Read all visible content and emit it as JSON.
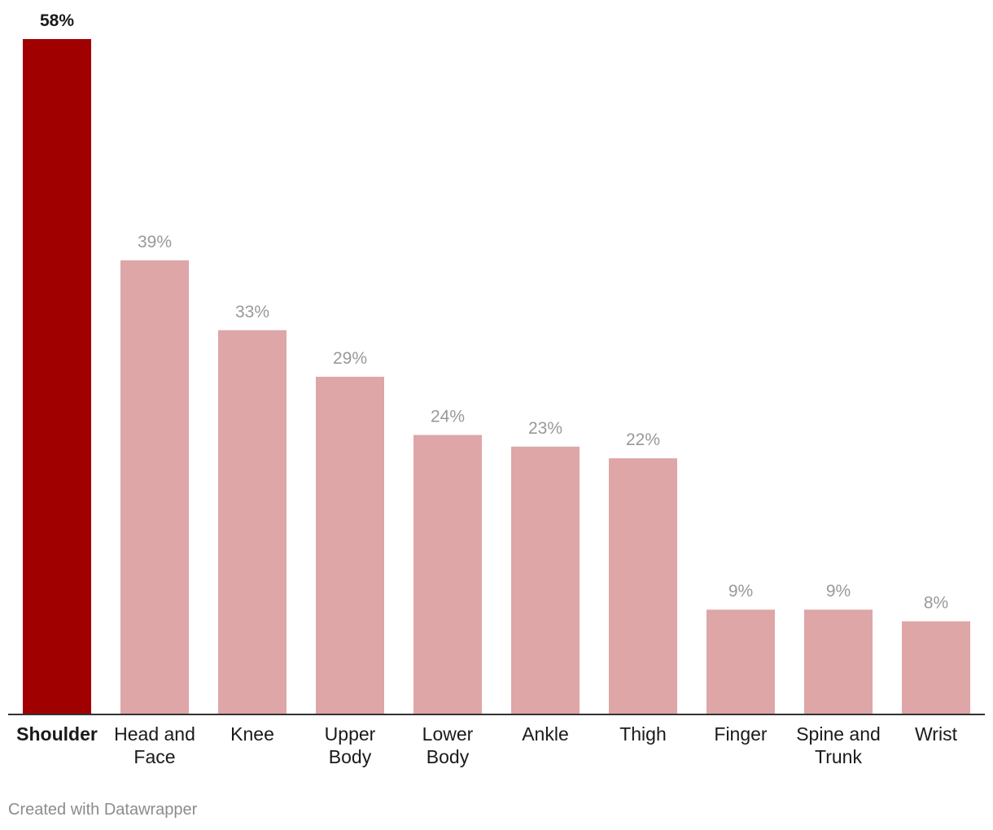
{
  "chart_data": {
    "type": "bar",
    "categories": [
      [
        "Shoulder"
      ],
      [
        "Head and",
        "Face"
      ],
      [
        "Knee"
      ],
      [
        "Upper",
        "Body"
      ],
      [
        "Lower",
        "Body"
      ],
      [
        "Ankle"
      ],
      [
        "Thigh"
      ],
      [
        "Finger"
      ],
      [
        "Spine and",
        "Trunk"
      ],
      [
        "Wrist"
      ]
    ],
    "values": [
      58,
      39,
      33,
      29,
      24,
      23,
      22,
      9,
      9,
      8
    ],
    "value_labels": [
      "58%",
      "39%",
      "33%",
      "29%",
      "24%",
      "23%",
      "22%",
      "9%",
      "9%",
      "8%"
    ],
    "highlight_index": 0,
    "ylim": [
      0,
      58
    ],
    "grid": false,
    "colors": {
      "highlight": "#a00000",
      "bar": "#dea6a7",
      "highlight_label": "#1a1a1a",
      "label": "#999999",
      "axis": "#333333"
    }
  },
  "footer": {
    "credit": "Created with Datawrapper"
  }
}
